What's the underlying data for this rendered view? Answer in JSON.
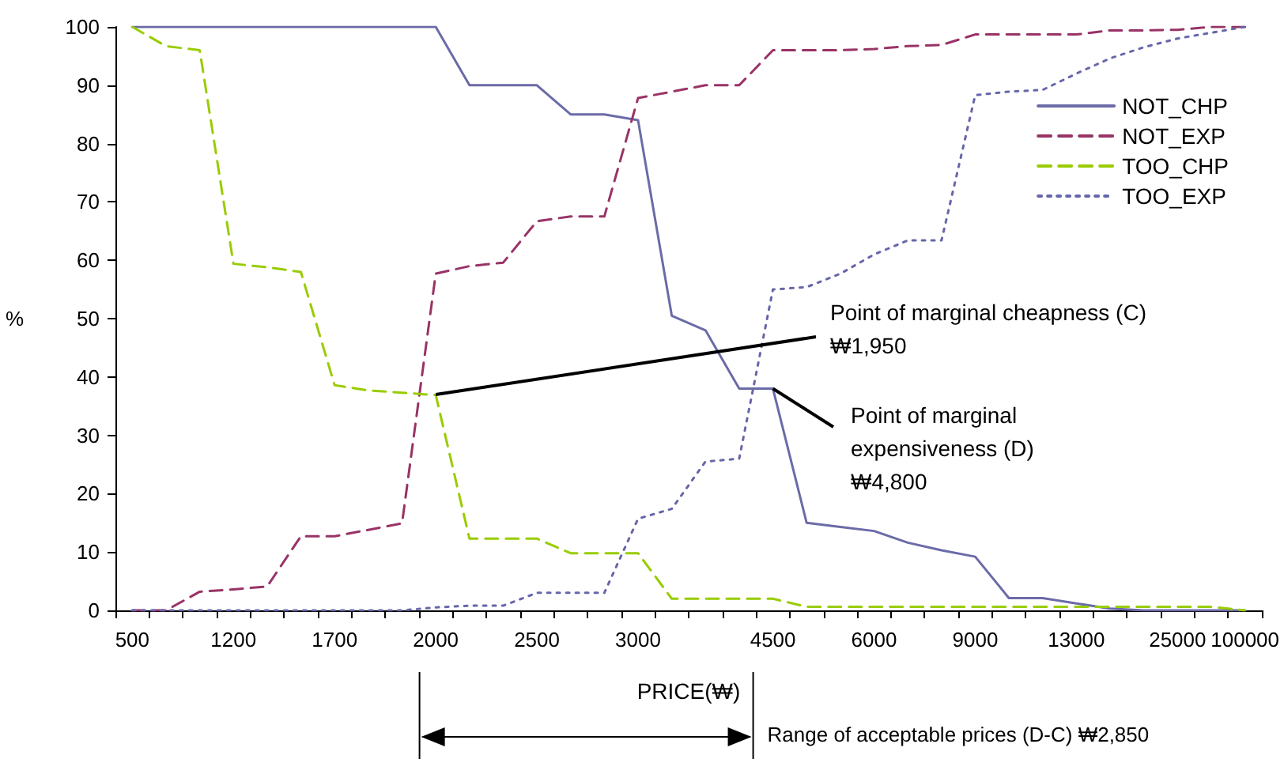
{
  "chart_data": {
    "type": "line",
    "xlabel": "PRICE(₩)",
    "ylabel": "%",
    "categories": [
      "500",
      null,
      null,
      "1200",
      null,
      null,
      "1700",
      null,
      null,
      "2000",
      null,
      null,
      "2500",
      null,
      null,
      "3000",
      null,
      null,
      null,
      "4500",
      null,
      null,
      "6000",
      null,
      null,
      "9000",
      null,
      null,
      "13000",
      null,
      null,
      "25000",
      null,
      "100000"
    ],
    "series": [
      {
        "name": "NOT_CHP",
        "color": "#6b6ba8",
        "line_style": "solid",
        "values": [
          100,
          100,
          100,
          100,
          100,
          100,
          100,
          100,
          100,
          100,
          90,
          90,
          90,
          85,
          85,
          84,
          50.5,
          48,
          38,
          38,
          15,
          14.3,
          13.6,
          11.6,
          10.3,
          9.2,
          2.1,
          2.1,
          1.2,
          0.3,
          0,
          0,
          0,
          0
        ]
      },
      {
        "name": "NOT_EXP",
        "color": "#993366",
        "line_style": "dashed",
        "values": [
          0,
          0,
          3.2,
          3.6,
          4.1,
          12.7,
          12.7,
          13.8,
          14.9,
          57.7,
          59,
          59.6,
          66.7,
          67.5,
          67.5,
          87.8,
          88.9,
          90,
          90,
          96,
          96,
          96,
          96.2,
          96.7,
          96.9,
          98.7,
          98.7,
          98.7,
          98.7,
          99.4,
          99.4,
          99.5,
          100,
          100
        ]
      },
      {
        "name": "TOO_CHP",
        "color": "#99cc00",
        "line_style": "dashed",
        "values": [
          100,
          96.7,
          96,
          59.4,
          58.8,
          58,
          38.6,
          37.7,
          37.3,
          36.9,
          12.3,
          12.3,
          12.3,
          9.8,
          9.8,
          9.8,
          2,
          2,
          2,
          2,
          0.6,
          0.6,
          0.6,
          0.6,
          0.6,
          0.6,
          0.6,
          0.6,
          0.6,
          0.6,
          0.6,
          0.6,
          0.6,
          0
        ]
      },
      {
        "name": "TOO_EXP",
        "color": "#6666aa",
        "line_style": "dotted",
        "values": [
          0,
          0,
          0,
          0,
          0,
          0,
          0,
          0,
          0,
          0.5,
          0.8,
          0.8,
          3,
          3,
          3,
          15.7,
          17.4,
          25.5,
          26,
          55,
          55.4,
          57.7,
          61,
          63.4,
          63.4,
          88.3,
          88.9,
          89.2,
          92,
          94.6,
          96.5,
          98,
          99,
          100
        ]
      }
    ],
    "ylim": [
      0,
      100
    ],
    "yticks": [
      0,
      10,
      20,
      30,
      40,
      50,
      60,
      70,
      80,
      90,
      100
    ],
    "grid": false,
    "legend": "right",
    "marker": "none",
    "annotations": [
      {
        "text": "Point of marginal cheapness (C)\n₩1,950",
        "x": "2000",
        "y": 37
      },
      {
        "text": "Point of marginal expensiveness (D)\n₩4,800",
        "x": "4500",
        "y": 38
      },
      "Range of acceptable prices (D-C) ₩2,850"
    ]
  }
}
